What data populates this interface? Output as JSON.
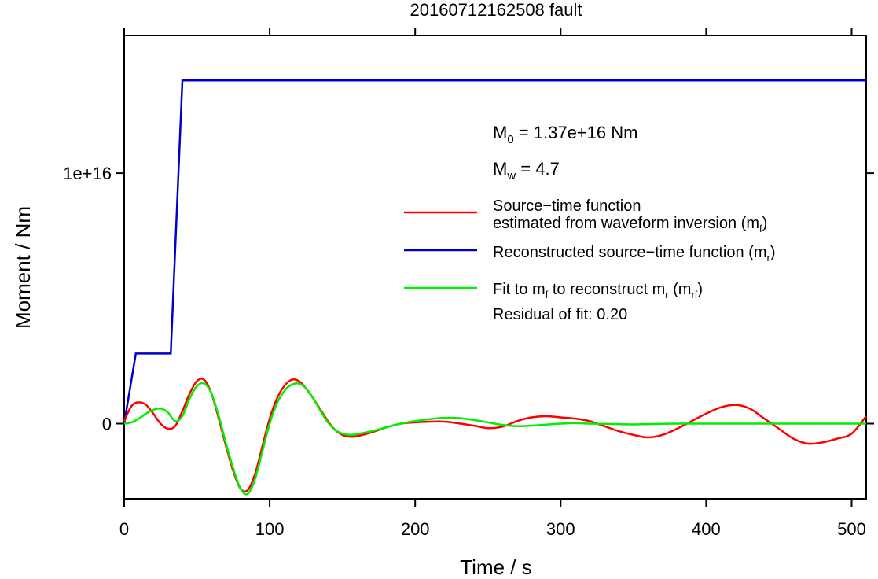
{
  "chart_data": {
    "type": "line",
    "title": "20160712162508 fault",
    "xlabel": "Time / s",
    "ylabel": "Moment / Nm",
    "xlim": [
      0,
      510
    ],
    "ylim": [
      -3000000000000000.0,
      1.55e+16
    ],
    "xticks": [
      0,
      100,
      200,
      300,
      400,
      500
    ],
    "xtick_labels": [
      "0",
      "100",
      "200",
      "300",
      "400",
      "500"
    ],
    "yticks": [
      0,
      1e+16
    ],
    "ytick_labels": [
      "0",
      "1e+16"
    ],
    "grid": false,
    "legend_position": "right",
    "annotations": {
      "m0": {
        "prefix": "M",
        "sub": "0",
        "text": " = 1.37e+16 Nm"
      },
      "mw": {
        "prefix": "M",
        "sub": "w",
        "text": " = 4.7"
      },
      "residual": "Residual of fit: 0.20"
    },
    "legend": {
      "red_line1": "Source−time function",
      "red_line2_pre": "estimated from waveform inversion (m",
      "red_line2_sub": "f",
      "red_line2_post": ")",
      "blue_pre": "Reconstructed source−time function (m",
      "blue_sub": "r",
      "blue_post": ")",
      "green_pre1": "Fit to m",
      "green_sub1": "f",
      "green_mid": " to reconstruct m",
      "green_sub2": "r",
      "green_mid2": " (m",
      "green_sub3": "rf",
      "green_post": ")"
    },
    "series": [
      {
        "color": "#ff0000",
        "x": [
          0,
          5,
          10,
          15,
          20,
          25,
          30,
          35,
          40,
          45,
          50,
          55,
          60,
          65,
          70,
          75,
          80,
          85,
          90,
          95,
          100,
          105,
          110,
          115,
          120,
          125,
          130,
          135,
          140,
          145,
          150,
          155,
          160,
          170,
          180,
          190,
          200,
          220,
          240,
          250,
          260,
          270,
          280,
          290,
          300,
          310,
          320,
          330,
          340,
          350,
          360,
          370,
          380,
          390,
          400,
          410,
          420,
          430,
          440,
          450,
          460,
          470,
          480,
          490,
          500,
          510
        ],
        "y": [
          100000000000000.0,
          700000000000000.0,
          850000000000000.0,
          750000000000000.0,
          400000000000000.0,
          0.0,
          -200000000000000.0,
          -100000000000000.0,
          500000000000000.0,
          1200000000000000.0,
          1700000000000000.0,
          1750000000000000.0,
          1200000000000000.0,
          200000000000000.0,
          -900000000000000.0,
          -1900000000000000.0,
          -2600000000000000.0,
          -2650000000000000.0,
          -2000000000000000.0,
          -900000000000000.0,
          200000000000000.0,
          1000000000000000.0,
          1500000000000000.0,
          1750000000000000.0,
          1700000000000000.0,
          1400000000000000.0,
          1000000000000000.0,
          550000000000000.0,
          100000000000000.0,
          -250000000000000.0,
          -450000000000000.0,
          -520000000000000.0,
          -500000000000000.0,
          -350000000000000.0,
          -150000000000000.0,
          0.0,
          50000000000000.0,
          80000000000000.0,
          -80000000000000.0,
          -180000000000000.0,
          -120000000000000.0,
          100000000000000.0,
          250000000000000.0,
          300000000000000.0,
          250000000000000.0,
          200000000000000.0,
          100000000000000.0,
          -100000000000000.0,
          -300000000000000.0,
          -450000000000000.0,
          -550000000000000.0,
          -450000000000000.0,
          -200000000000000.0,
          100000000000000.0,
          400000000000000.0,
          650000000000000.0,
          750000000000000.0,
          600000000000000.0,
          200000000000000.0,
          -200000000000000.0,
          -600000000000000.0,
          -800000000000000.0,
          -750000000000000.0,
          -600000000000000.0,
          -400000000000000.0,
          300000000000000.0
        ]
      },
      {
        "color": "#0000cc",
        "x": [
          0,
          8,
          32,
          40,
          510
        ],
        "y": [
          0.0,
          2800000000000000.0,
          2800000000000000.0,
          1.37e+16,
          1.37e+16
        ]
      },
      {
        "color": "#00ee00",
        "x": [
          0,
          5,
          10,
          15,
          20,
          25,
          30,
          35,
          40,
          45,
          50,
          55,
          60,
          65,
          70,
          75,
          80,
          85,
          90,
          95,
          100,
          105,
          110,
          115,
          120,
          125,
          130,
          135,
          140,
          145,
          150,
          155,
          160,
          170,
          180,
          190,
          200,
          210,
          220,
          230,
          240,
          250,
          260,
          270,
          280,
          290,
          300,
          310,
          320,
          330,
          340,
          350,
          360,
          380,
          400,
          450,
          510
        ],
        "y": [
          0.0,
          50000000000000.0,
          200000000000000.0,
          400000000000000.0,
          550000000000000.0,
          600000000000000.0,
          450000000000000.0,
          100000000000000.0,
          300000000000000.0,
          1000000000000000.0,
          1500000000000000.0,
          1600000000000000.0,
          1200000000000000.0,
          300000000000000.0,
          -800000000000000.0,
          -1800000000000000.0,
          -2600000000000000.0,
          -2800000000000000.0,
          -2200000000000000.0,
          -1100000000000000.0,
          0.0,
          800000000000000.0,
          1300000000000000.0,
          1550000000000000.0,
          1600000000000000.0,
          1400000000000000.0,
          1000000000000000.0,
          500000000000000.0,
          50000000000000.0,
          -250000000000000.0,
          -400000000000000.0,
          -450000000000000.0,
          -420000000000000.0,
          -300000000000000.0,
          -150000000000000.0,
          0.0,
          100000000000000.0,
          180000000000000.0,
          230000000000000.0,
          220000000000000.0,
          150000000000000.0,
          50000000000000.0,
          -50000000000000.0,
          -100000000000000.0,
          -80000000000000.0,
          -40000000000000.0,
          0.0,
          20000000000000.0,
          0.0,
          -10000000000000.0,
          -20000000000000.0,
          -30000000000000.0,
          -20000000000000.0,
          0.0,
          0.0,
          0.0,
          0.0
        ]
      }
    ]
  }
}
